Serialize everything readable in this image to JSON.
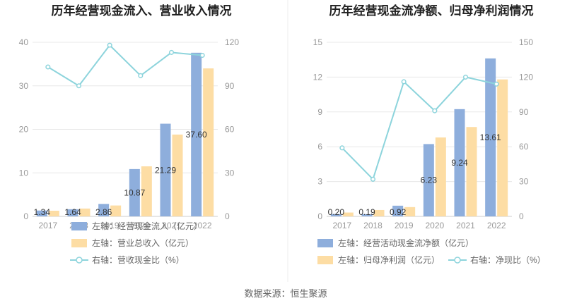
{
  "source_label": "数据来源：恒生聚源",
  "colors": {
    "bar1": "#8eaedc",
    "bar2": "#fddda4",
    "line": "#8dd4dc",
    "grid": "#e8e8e8",
    "axis": "#cccccc"
  },
  "chart_data": [
    {
      "type": "bar",
      "title": "历年经营现金流入、营业收入情况",
      "categories": [
        "2017",
        "2018",
        "2019",
        "2020",
        "2021",
        "2022"
      ],
      "ylim_left": [
        0,
        40
      ],
      "yticks_left": [
        "0",
        "10",
        "20",
        "30",
        "40"
      ],
      "ylim_right": [
        0,
        120
      ],
      "yticks_right": [
        "0",
        "30",
        "60",
        "90",
        "120"
      ],
      "series": [
        {
          "name": "左轴：经营现金流入（亿元）",
          "axis": "left",
          "kind": "bar",
          "values": [
            1.34,
            1.64,
            2.86,
            10.87,
            21.29,
            37.6
          ],
          "labels": [
            "1.34",
            "1.64",
            "2.86",
            "10.87",
            "21.29",
            "37.60"
          ]
        },
        {
          "name": "左轴：营业总收入（亿元）",
          "axis": "left",
          "kind": "bar",
          "values": [
            1.3,
            1.8,
            2.5,
            11.5,
            18.8,
            34.0
          ]
        },
        {
          "name": "右轴：营收现金比（%）",
          "axis": "right",
          "kind": "line",
          "values": [
            103,
            90,
            118,
            97,
            113,
            111
          ]
        }
      ]
    },
    {
      "type": "bar",
      "title": "历年经营现金流净额、归母净利润情况",
      "categories": [
        "2017",
        "2018",
        "2019",
        "2020",
        "2021",
        "2022"
      ],
      "ylim_left": [
        0,
        15
      ],
      "yticks_left": [
        "0",
        "3",
        "6",
        "9",
        "12",
        "15"
      ],
      "ylim_right": [
        0,
        150
      ],
      "yticks_right": [
        "0",
        "30",
        "60",
        "90",
        "120",
        "150"
      ],
      "series": [
        {
          "name": "左轴：经营活动现金流净额（亿元）",
          "axis": "left",
          "kind": "bar",
          "values": [
            0.2,
            0.19,
            0.92,
            6.23,
            9.24,
            13.61
          ],
          "labels": [
            "0.20",
            "0.19",
            "0.92",
            "6.23",
            "9.24",
            "13.61"
          ]
        },
        {
          "name": "左轴：归母净利润（亿元）",
          "axis": "left",
          "kind": "bar",
          "values": [
            0.33,
            0.55,
            0.8,
            6.8,
            7.7,
            11.8
          ]
        },
        {
          "name": "右轴：净现比（%）",
          "axis": "right",
          "kind": "line",
          "values": [
            59,
            32,
            116,
            91,
            120,
            114
          ]
        }
      ]
    }
  ]
}
